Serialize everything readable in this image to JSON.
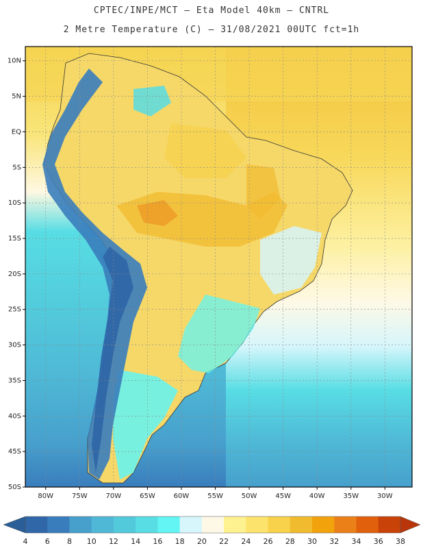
{
  "header": {
    "line1": "CPTEC/INPE/MCT –  Eta Model 40km – CNTRL",
    "line2": "2 Metre Temperature (C) – 31/08/2021 00UTC fct=1h"
  },
  "map": {
    "lat_labels": [
      "10N",
      "5N",
      "EQ",
      "5S",
      "10S",
      "15S",
      "20S",
      "25S",
      "30S",
      "35S",
      "40S",
      "45S",
      "50S"
    ],
    "lon_labels": [
      "80W",
      "75W",
      "70W",
      "65W",
      "60W",
      "55W",
      "50W",
      "45W",
      "40W",
      "35W",
      "30W"
    ],
    "lat_values": [
      10,
      5,
      0,
      -5,
      -10,
      -15,
      -20,
      -25,
      -30,
      -35,
      -40,
      -45,
      -50
    ],
    "lon_values": [
      -80,
      -75,
      -70,
      -65,
      -60,
      -55,
      -50,
      -45,
      -40,
      -35,
      -30
    ],
    "extent": {
      "lon_min": -83,
      "lon_max": -26,
      "lat_min": -50,
      "lat_max": 12
    }
  },
  "colorbar": {
    "labels": [
      "4",
      "6",
      "8",
      "10",
      "12",
      "14",
      "16",
      "18",
      "20",
      "22",
      "24",
      "26",
      "28",
      "30",
      "32",
      "34",
      "36",
      "38"
    ],
    "colors": [
      "#2f67a8",
      "#3a7dbd",
      "#47a0cc",
      "#4fb8d6",
      "#52cadb",
      "#58dde4",
      "#62f5f4",
      "#d6f6fb",
      "#fef9e6",
      "#fef190",
      "#fce36b",
      "#f8d24a",
      "#f1bb2f",
      "#f2a30b",
      "#ec8018",
      "#e1600c",
      "#c94208"
    ],
    "arrow_left_color": "#2a5e98",
    "arrow_right_color": "#b8360a"
  }
}
